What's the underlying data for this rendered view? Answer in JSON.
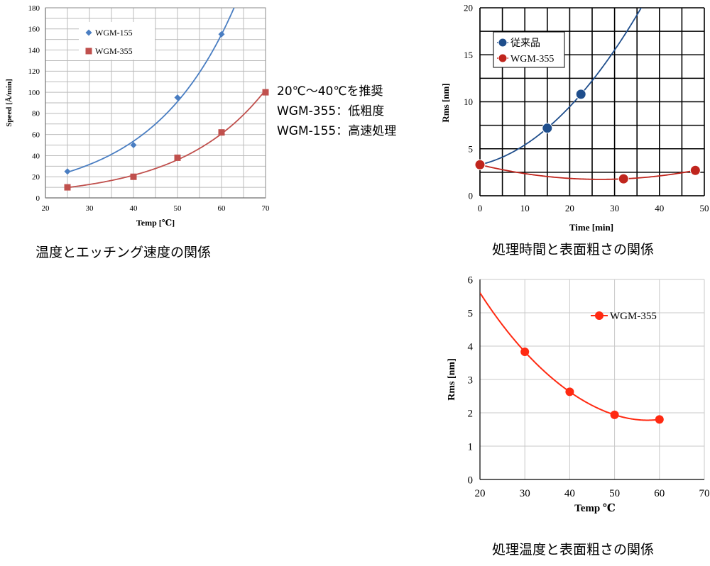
{
  "chart_data": [
    {
      "type": "scatter",
      "caption": "温度とエッチング速度の関係",
      "xlabel": "Temp [℃]",
      "ylabel": "Speed [Å/min]",
      "xlim": [
        20,
        70
      ],
      "ylim": [
        0,
        180
      ],
      "xticks": [
        20,
        30,
        40,
        50,
        60,
        70
      ],
      "yticks": [
        0,
        20,
        40,
        60,
        80,
        100,
        120,
        140,
        160,
        180
      ],
      "grid": true,
      "legend_position": "top-left",
      "trendline": "exponential",
      "series": [
        {
          "name": "WGM-155",
          "color": "#4a7ec2",
          "marker": "diamond",
          "x": [
            25,
            40,
            50,
            60
          ],
          "y": [
            25,
            50,
            95,
            155
          ]
        },
        {
          "name": "WGM-355",
          "color": "#c0504d",
          "marker": "square",
          "x": [
            25,
            40,
            50,
            60,
            70
          ],
          "y": [
            10,
            20,
            38,
            62,
            100
          ]
        }
      ],
      "annotation": [
        "20℃〜40℃を推奨",
        "WGM-355：低粗度",
        "WGM-155：高速処理"
      ]
    },
    {
      "type": "scatter",
      "caption": "処理時間と表面粗さの関係",
      "xlabel": "Time [min]",
      "ylabel": "Rms [nm]",
      "xlim": [
        0,
        50
      ],
      "ylim": [
        0,
        20
      ],
      "xticks": [
        0,
        10,
        20,
        30,
        40,
        50
      ],
      "yticks": [
        0,
        5,
        10,
        15,
        20
      ],
      "grid": true,
      "legend_position": "top-left",
      "trendline": "polynomial",
      "series": [
        {
          "name": "従来品",
          "color": "#1f4e8c",
          "marker": "circle",
          "x": [
            0,
            15,
            22.5
          ],
          "y": [
            3.3,
            7.2,
            10.8
          ]
        },
        {
          "name": "WGM-355",
          "color": "#c0251d",
          "marker": "circle",
          "x": [
            0,
            32,
            48
          ],
          "y": [
            3.3,
            1.8,
            2.7
          ]
        }
      ]
    },
    {
      "type": "line",
      "caption": "処理温度と表面粗さの関係",
      "xlabel": "Temp ℃",
      "ylabel": "Rms [nm]",
      "xlim": [
        20,
        70
      ],
      "ylim": [
        0,
        6
      ],
      "xticks": [
        20,
        30,
        40,
        50,
        60,
        70
      ],
      "yticks": [
        0,
        1,
        2,
        3,
        4,
        5,
        6
      ],
      "grid": true,
      "legend_position": "top-right",
      "series": [
        {
          "name": "WGM-355",
          "color": "#ff2a12",
          "marker": "circle",
          "x": [
            30,
            40,
            50,
            60
          ],
          "y": [
            3.83,
            2.63,
            1.94,
            1.8
          ]
        }
      ]
    }
  ]
}
